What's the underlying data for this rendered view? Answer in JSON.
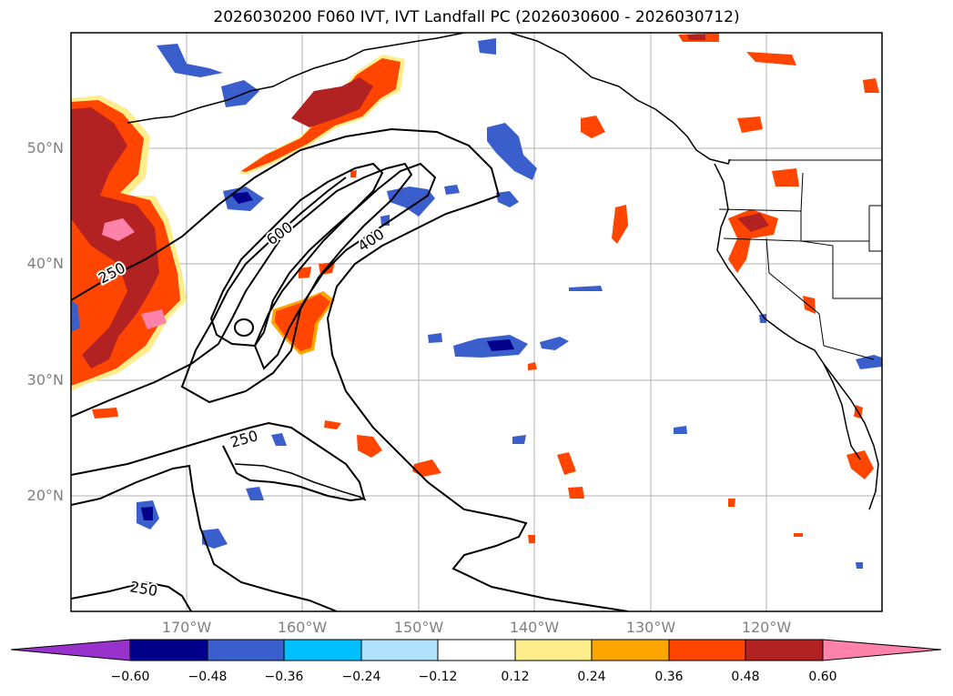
{
  "title": "2026030200 F060 IVT, IVT Landfall PC (2026030600 - 2026030712)",
  "map": {
    "lat_labels": [
      "50°N",
      "40°N",
      "30°N",
      "20°N"
    ],
    "lon_labels": [
      "170°W",
      "160°W",
      "150°W",
      "140°W",
      "130°W",
      "120°W"
    ],
    "contour_labels": [
      "250",
      "600",
      "400",
      "250",
      "250"
    ]
  },
  "colorbar": {
    "ticks": [
      "−0.60",
      "−0.48",
      "−0.36",
      "−0.24",
      "−0.12",
      "0.12",
      "0.24",
      "0.36",
      "0.48",
      "0.60"
    ],
    "colors": [
      "#9932cc",
      "#00008b",
      "#3a5fcd",
      "#00bfff",
      "#b0e2ff",
      "#ffffff",
      "#ffec8b",
      "#ffa500",
      "#ff4500",
      "#b22222",
      "#ff82ab"
    ]
  },
  "colors": {
    "grid": "#b0b0b0",
    "contour": "#000000",
    "coast": "#000000"
  }
}
